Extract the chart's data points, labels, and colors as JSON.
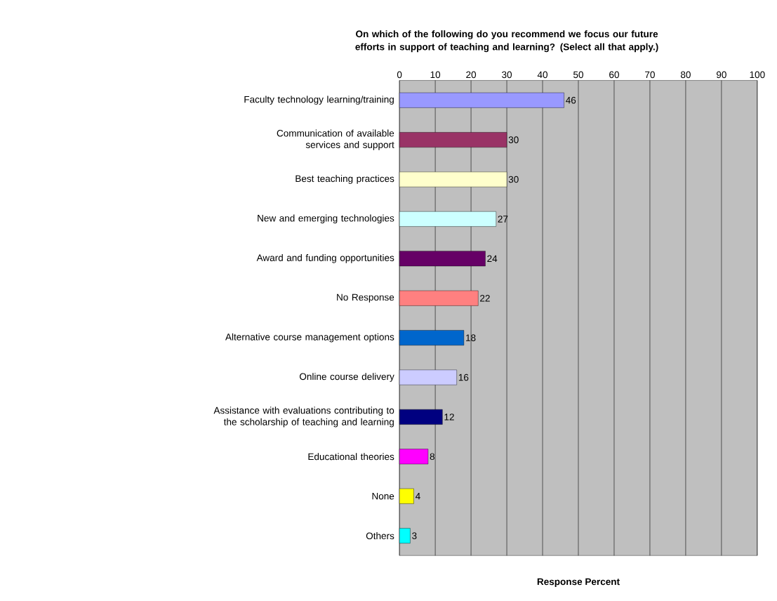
{
  "chart_data": {
    "type": "bar",
    "orientation": "horizontal",
    "title": "On which of the following do you recommend we focus our future efforts in support of teaching and learning? (Select all that apply.)",
    "xlabel": "Response Percent",
    "categories": [
      "Faculty technology learning/training",
      "Communication of available services and support",
      "Best teaching practices",
      "New and emerging technologies",
      "Award and funding opportunities",
      "No Response",
      "Alternative course management options",
      "Online course delivery",
      "Assistance with evaluations contributing to the scholarship of teaching and learning",
      "Educational theories",
      "None",
      "Others"
    ],
    "values": [
      46,
      30,
      30,
      27,
      24,
      22,
      18,
      16,
      12,
      8,
      4,
      3
    ],
    "colors": [
      "#9999ff",
      "#993366",
      "#ffffcc",
      "#ccffff",
      "#660066",
      "#ff8080",
      "#0066cc",
      "#ccccff",
      "#000080",
      "#ff00ff",
      "#ffff00",
      "#00ffff"
    ],
    "xlim": [
      0,
      100
    ],
    "xticks": [
      0,
      10,
      20,
      30,
      40,
      50,
      60,
      70,
      80,
      90,
      100
    ],
    "grid": "x",
    "data_labels": true
  }
}
